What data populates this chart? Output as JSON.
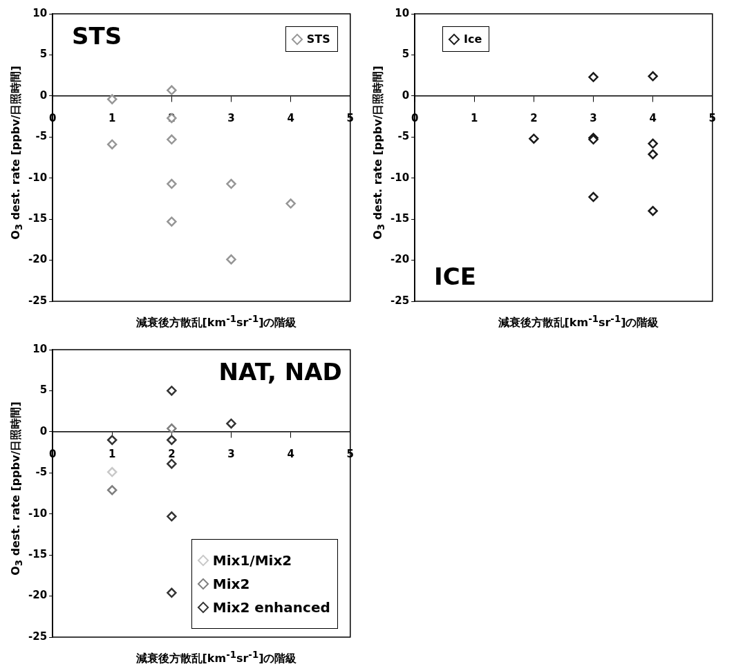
{
  "chart_data": [
    {
      "type": "scatter",
      "title": "STS",
      "xlabel": "減衰後方散乱[km$^{-1}$sr$^{-1}$]の階級",
      "ylabel": "O$_{3}$ dest. rate [ppbv/日照時間]",
      "xlim": [
        0,
        5
      ],
      "ylim": [
        -25,
        10
      ],
      "xticks": [
        0,
        1,
        2,
        3,
        4,
        5
      ],
      "yticks": [
        -25,
        -20,
        -15,
        -10,
        -5,
        0,
        5,
        10
      ],
      "legend": "top right",
      "marker": "diamond",
      "series": [
        {
          "name": "STS",
          "color": "#969696",
          "x": [
            1,
            1,
            2,
            2,
            2,
            2,
            2,
            3,
            3,
            4
          ],
          "values": [
            -0.4,
            -5.9,
            0.7,
            -2.7,
            -5.3,
            -10.7,
            -15.3,
            -10.7,
            -19.9,
            -13.1
          ]
        }
      ]
    },
    {
      "type": "scatter",
      "title": "ICE",
      "xlabel": "減衰後方散乱[km$^{-1}$sr$^{-1}$]の階級",
      "ylabel": "O$_{3}$ dest. rate [ppbv/日照時間]",
      "xlim": [
        0,
        5
      ],
      "ylim": [
        -25,
        10
      ],
      "xticks": [
        0,
        1,
        2,
        3,
        4,
        5
      ],
      "yticks": [
        -25,
        -20,
        -15,
        -10,
        -5,
        0,
        5,
        10
      ],
      "legend": "top left",
      "marker": "diamond",
      "series": [
        {
          "name": "Ice",
          "color": "#1a1a1a",
          "x": [
            2,
            3,
            3,
            3,
            3,
            4,
            4,
            4,
            4
          ],
          "values": [
            -5.2,
            2.3,
            -5.1,
            -5.3,
            -12.3,
            2.4,
            -5.8,
            -7.1,
            -14.0
          ]
        }
      ]
    },
    {
      "type": "scatter",
      "title": "NAT, NAD",
      "xlabel": "減衰後方散乱[km$^{-1}$sr$^{-1}$]の階級",
      "ylabel": "O$_{3}$ dest. rate [ppbv/日照時間]",
      "xlim": [
        0,
        5
      ],
      "ylim": [
        -25,
        10
      ],
      "xticks": [
        0,
        1,
        2,
        3,
        4,
        5
      ],
      "yticks": [
        -25,
        -20,
        -15,
        -10,
        -5,
        0,
        5,
        10
      ],
      "legend": "bottom right",
      "marker": "diamond",
      "series": [
        {
          "name": "Mix1/Mix2",
          "color": "#c8c8c8",
          "x": [
            1
          ],
          "values": [
            -4.9
          ]
        },
        {
          "name": "Mix2",
          "color": "#7f7f7f",
          "x": [
            2,
            1
          ],
          "values": [
            0.4,
            -7.1
          ]
        },
        {
          "name": "Mix2 enhanced",
          "color": "#333333",
          "x": [
            2,
            1,
            2,
            2,
            2,
            2,
            3
          ],
          "values": [
            5.0,
            -1.0,
            -1.0,
            -3.9,
            -10.3,
            -19.6,
            1.0
          ]
        }
      ]
    }
  ]
}
